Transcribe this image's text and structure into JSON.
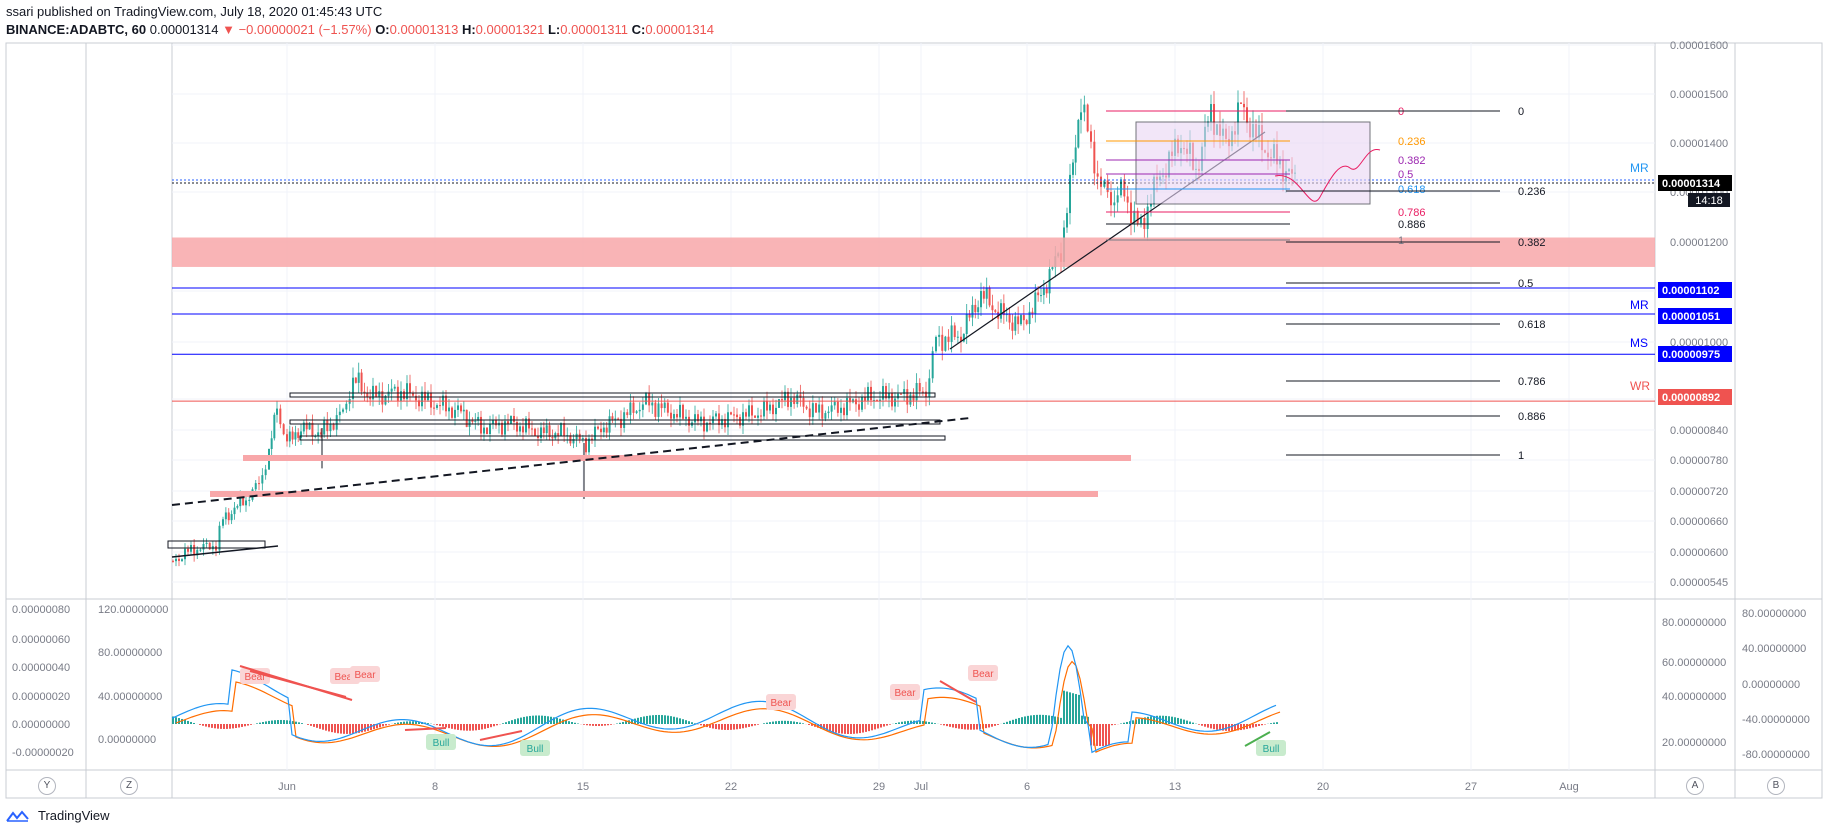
{
  "header": {
    "publisher": "ssari published on TradingView.com, July 18, 2020 01:45:43 UTC",
    "symbol": "BINANCE:ADABTC, 60",
    "last": "0.00001314",
    "change": "−0.00000021 (−1.57%)",
    "o_label": "O:",
    "o_value": "0.00001313",
    "h_label": "H:",
    "h_value": "0.00001321",
    "l_label": "L:",
    "l_value": "0.00001311",
    "c_label": "C:",
    "c_value": "0.00001314"
  },
  "footer": {
    "brand": "TradingView"
  },
  "side_buttons": {
    "y": "Y",
    "z": "Z",
    "a": "A",
    "b": "B"
  },
  "colors": {
    "up": "#26a69a",
    "down": "#ef5350",
    "support_band": "#f8a7a9",
    "level_blue": "#0000ff",
    "level_red": "#ef5350",
    "macd_line": "#2196f3",
    "signal_line": "#ff6d00",
    "fib_box": "#ead6f5"
  },
  "chart_data": {
    "type": "candlestick",
    "symbol": "BINANCE:ADABTC",
    "interval": "60",
    "y_ticks": [
      "0.00001600",
      "0.00001500",
      "0.00001400",
      "0.00001300",
      "0.00001200",
      "0.00001100",
      "0.00001000",
      "0.00000900",
      "0.00000840",
      "0.00000780",
      "0.00000720",
      "0.00000660",
      "0.00000600",
      "0.00000545"
    ],
    "x_ticks": [
      "Jun",
      "8",
      "15",
      "22",
      "29",
      "Jul",
      "6",
      "13",
      "20",
      "27",
      "Aug"
    ],
    "ohlc_last": {
      "open": 1.313e-05,
      "high": 1.321e-05,
      "low": 1.311e-05,
      "close": 1.314e-05
    },
    "price_labels": [
      {
        "text": "0.00001314",
        "color": "#000000",
        "sub": "14:18"
      },
      {
        "text": "0.00001102",
        "color": "#0000ff",
        "tag": ""
      },
      {
        "text": "0.00001051",
        "color": "#0000ff",
        "tag": "MR"
      },
      {
        "text": "0.00000975",
        "color": "#0000ff",
        "tag": "MS"
      },
      {
        "text": "0.00000892",
        "color": "#ef5350",
        "tag": "WR"
      }
    ],
    "top_tag": "MR",
    "fib_retracement_small": [
      "0",
      "0.236",
      "0.382",
      "0.5",
      "0.618",
      "0.786",
      "0.886",
      "1"
    ],
    "fib_retracement_large": [
      "0",
      "0.236",
      "0.382",
      "0.5",
      "0.618",
      "0.786",
      "0.886",
      "1"
    ],
    "indicator": {
      "left_ticks": [
        "0.00000080",
        "0.00000060",
        "0.00000040",
        "0.00000020",
        "0.00000000",
        "-0.00000020"
      ],
      "inner_ticks": [
        "120.00000000",
        "80.00000000",
        "40.00000000",
        "0.00000000"
      ],
      "right_inner_ticks": [
        "80.00000000",
        "60.00000000",
        "40.00000000",
        "20.00000000"
      ],
      "right_outer_ticks": [
        "80.00000000",
        "40.00000000",
        "0.00000000",
        "-40.00000000",
        "-80.00000000"
      ],
      "divergence_labels": [
        {
          "text": "Bear",
          "type": "bear"
        },
        {
          "text": "Bear",
          "type": "bear"
        },
        {
          "text": "Bear",
          "type": "bear"
        },
        {
          "text": "Bull",
          "type": "bull"
        },
        {
          "text": "Bull",
          "type": "bull"
        },
        {
          "text": "Bear",
          "type": "bear"
        },
        {
          "text": "Bear",
          "type": "bear"
        },
        {
          "text": "Bear",
          "type": "bear"
        },
        {
          "text": "Bull",
          "type": "bull"
        }
      ]
    }
  }
}
